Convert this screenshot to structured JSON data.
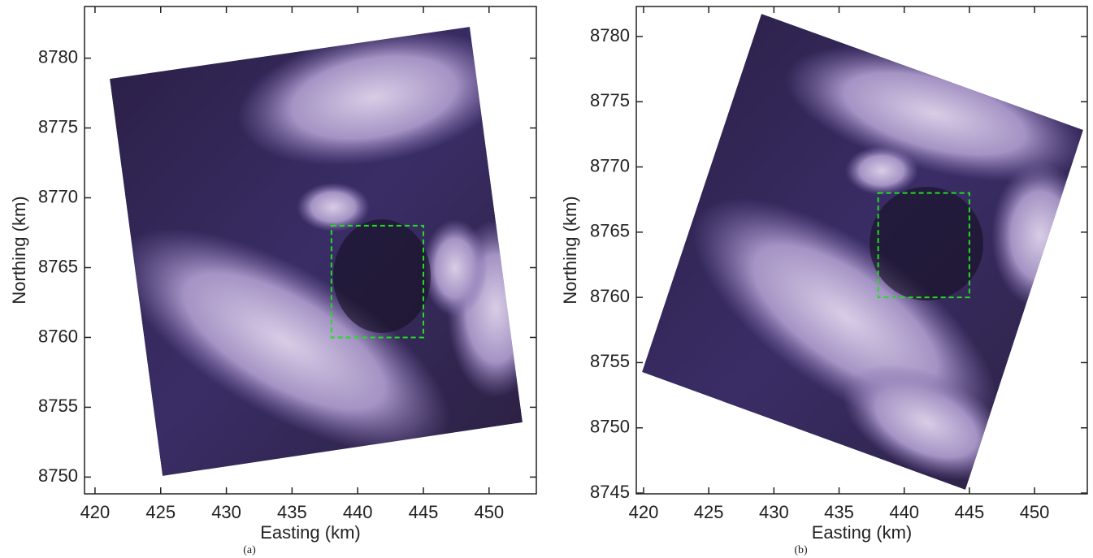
{
  "chart_data": [
    {
      "type": "image",
      "caption": "(a)",
      "x_label": "Easting (km)",
      "y_label": "Northing (km)",
      "xlim": [
        419.2,
        453.6
      ],
      "ylim": [
        8748.8,
        8783.7
      ],
      "xticks": [
        420,
        425,
        430,
        435,
        440,
        445,
        450
      ],
      "yticks": [
        8750,
        8755,
        8760,
        8765,
        8770,
        8775,
        8780
      ],
      "region": {
        "x": [
          438,
          445
        ],
        "y": [
          8760,
          8768
        ],
        "color": "#22dd22"
      }
    },
    {
      "type": "image",
      "caption": "(b)",
      "x_label": "Easting (km)",
      "y_label": "Northing (km)",
      "xlim": [
        419.44,
        454.05
      ],
      "ylim": [
        8744.94,
        8782.3
      ],
      "xticks": [
        420,
        425,
        430,
        435,
        440,
        445,
        450
      ],
      "yticks": [
        8745,
        8750,
        8755,
        8760,
        8765,
        8770,
        8775,
        8780
      ],
      "region": {
        "x": [
          438,
          445
        ],
        "y": [
          8760,
          8768
        ],
        "color": "#22dd22"
      }
    }
  ]
}
